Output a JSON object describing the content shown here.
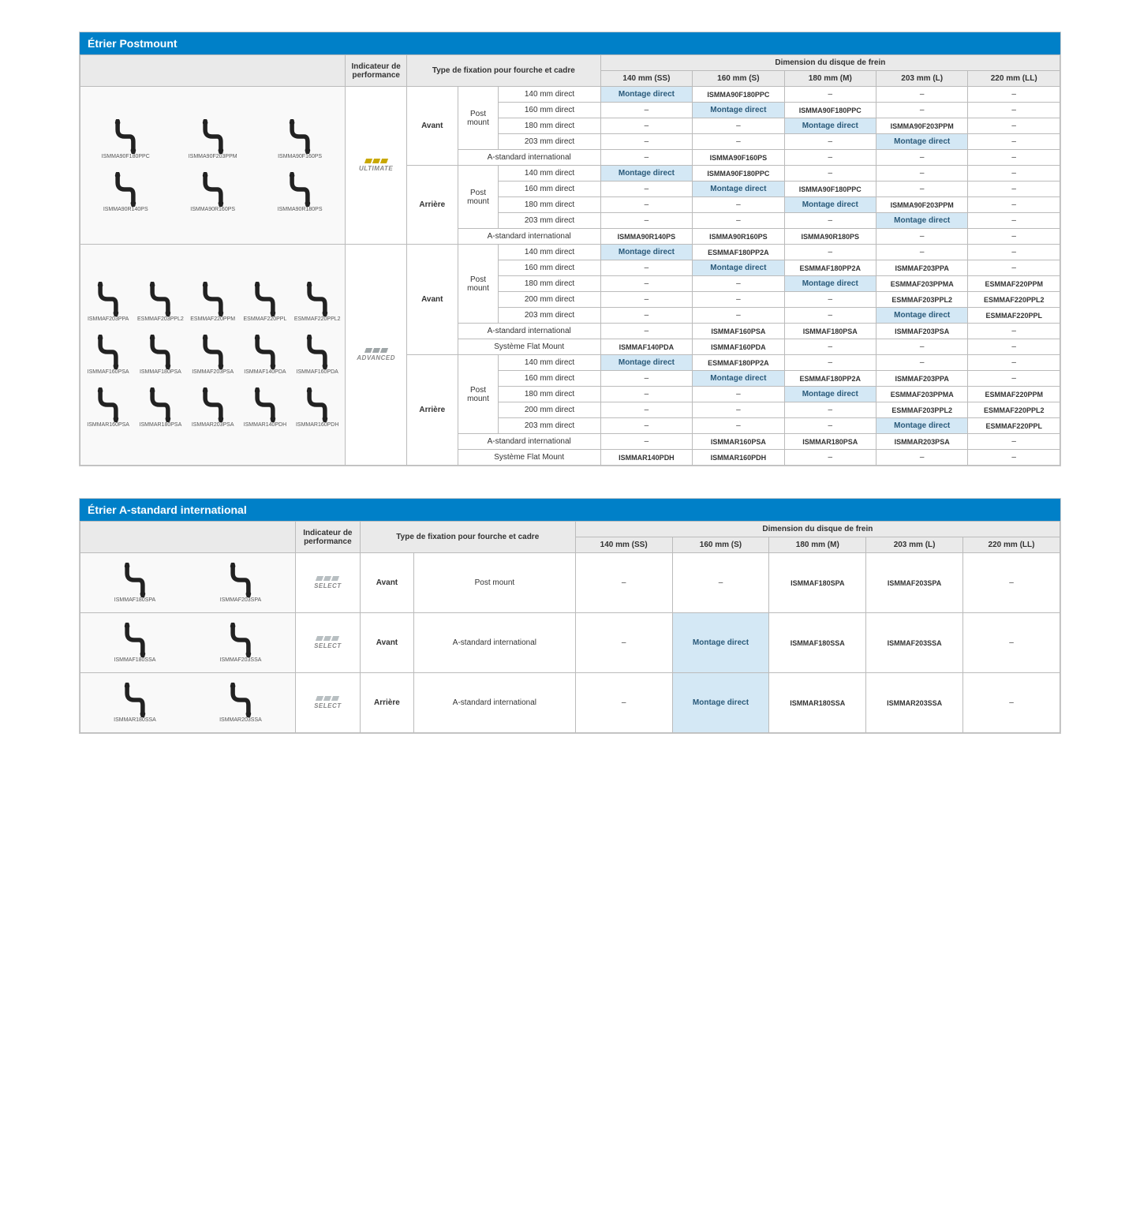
{
  "colors": {
    "header_bg": "#0080c8",
    "header_fg": "#ffffff",
    "th_bg": "#eaeaea",
    "border": "#bbbbbb",
    "highlight_bg": "#d4e8f5",
    "highlight_fg": "#2a5a7a",
    "body_bg": "#ffffff"
  },
  "headers": {
    "perf": "Indicateur de performance",
    "fixation": "Type de fixation pour fourche et cadre",
    "fixation_long": "Type de fixation pour fourche et cadre",
    "dimension": "Dimension du disque de frein",
    "dims": [
      "140 mm (SS)",
      "160 mm (S)",
      "180 mm (M)",
      "203 mm (L)",
      "220 mm (LL)"
    ]
  },
  "labels": {
    "avant": "Avant",
    "arriere": "Arrière",
    "postmount": "Post mount",
    "astd": "A-standard international",
    "flat": "Système Flat Mount",
    "md": "Montage direct",
    "na": "–",
    "ultimate": "ULTIMATE",
    "advanced": "ADVANCED",
    "select": "SELECT"
  },
  "section1": {
    "title": "Étrier Postmount",
    "group1_thumbs_top": [
      "ISMMA90F180PPC",
      "ISMMA90F203PPM",
      "ISMMA90F160PS"
    ],
    "group1_thumbs_bot": [
      "ISMMA90R140PS",
      "ISMMA90R160PS",
      "ISMMA90R180PS"
    ],
    "group2_thumbs_r1": [
      "ISMMAF203PPA",
      "ESMMAF203PPL2",
      "ESMMAF220PPM",
      "ESMMAF220PPL",
      "ESMMAF220PPL2"
    ],
    "group2_thumbs_r2": [
      "ISMMAF160PSA",
      "ISMMAF180PSA",
      "ISMMAF203PSA",
      "ISMMAF140PDA",
      "ISMMAF160PDA"
    ],
    "group2_thumbs_r3": [
      "ISMMAR160PSA",
      "ISMMAR180PSA",
      "ISMMAR203PSA",
      "ISMMAR140PDH",
      "ISMMAR160PDH"
    ],
    "g1": {
      "avant_pm": {
        "140": [
          "md",
          "ISMMA90F180PPC",
          "na",
          "na",
          "na"
        ],
        "160": [
          "na",
          "md",
          "ISMMA90F180PPC",
          "na",
          "na"
        ],
        "180": [
          "na",
          "na",
          "md",
          "ISMMA90F203PPM",
          "na"
        ],
        "203": [
          "na",
          "na",
          "na",
          "md",
          "na"
        ]
      },
      "avant_astd": [
        "na",
        "ISMMA90F160PS",
        "na",
        "na",
        "na"
      ],
      "arriere_pm": {
        "140": [
          "md",
          "ISMMA90F180PPC",
          "na",
          "na",
          "na"
        ],
        "160": [
          "na",
          "md",
          "ISMMA90F180PPC",
          "na",
          "na"
        ],
        "180": [
          "na",
          "na",
          "md",
          "ISMMA90F203PPM",
          "na"
        ],
        "203": [
          "na",
          "na",
          "na",
          "md",
          "na"
        ]
      },
      "arriere_astd": [
        "ISMMA90R140PS",
        "ISMMA90R160PS",
        "ISMMA90R180PS",
        "na",
        "na"
      ]
    },
    "g2": {
      "avant_pm": {
        "140": [
          "md",
          "ESMMAF180PP2A",
          "na",
          "na",
          "na"
        ],
        "160": [
          "na",
          "md",
          "ESMMAF180PP2A",
          "ISMMAF203PPA",
          "na"
        ],
        "180": [
          "na",
          "na",
          "md",
          "ESMMAF203PPMA",
          "ESMMAF220PPM"
        ],
        "200": [
          "na",
          "na",
          "na",
          "ESMMAF203PPL2",
          "ESMMAF220PPL2"
        ],
        "203": [
          "na",
          "na",
          "na",
          "md",
          "ESMMAF220PPL"
        ]
      },
      "avant_astd": [
        "na",
        "ISMMAF160PSA",
        "ISMMAF180PSA",
        "ISMMAF203PSA",
        "na"
      ],
      "avant_flat": [
        "ISMMAF140PDA",
        "ISMMAF160PDA",
        "na",
        "na",
        "na"
      ],
      "arriere_pm": {
        "140": [
          "md",
          "ESMMAF180PP2A",
          "na",
          "na",
          "na"
        ],
        "160": [
          "na",
          "md",
          "ESMMAF180PP2A",
          "ISMMAF203PPA",
          "na"
        ],
        "180": [
          "na",
          "na",
          "md",
          "ESMMAF203PPMA",
          "ESMMAF220PPM"
        ],
        "200": [
          "na",
          "na",
          "na",
          "ESMMAF203PPL2",
          "ESMMAF220PPL2"
        ],
        "203": [
          "na",
          "na",
          "na",
          "md",
          "ESMMAF220PPL"
        ]
      },
      "arriere_astd": [
        "na",
        "ISMMAR160PSA",
        "ISMMAR180PSA",
        "ISMMAR203PSA",
        "na"
      ],
      "arriere_flat": [
        "ISMMAR140PDH",
        "ISMMAR160PDH",
        "na",
        "na",
        "na"
      ]
    },
    "specs": {
      "140d": "140 mm direct",
      "160d": "160 mm direct",
      "180d": "180 mm direct",
      "200d": "200 mm direct",
      "203d": "203 mm direct"
    }
  },
  "section2": {
    "title": "Étrier A-standard international",
    "rows": [
      {
        "thumbs": [
          "ISMMAF180SPA",
          "ISMMAF203SPA"
        ],
        "pos": "Avant",
        "mount": "Post mount",
        "cells": [
          "na",
          "na",
          "ISMMAF180SPA",
          "ISMMAF203SPA",
          "na"
        ]
      },
      {
        "thumbs": [
          "ISMMAF180SSA",
          "ISMMAF203SSA"
        ],
        "pos": "Avant",
        "mount": "A-standard international",
        "cells": [
          "na",
          "md",
          "ISMMAF180SSA",
          "ISMMAF203SSA",
          "na"
        ]
      },
      {
        "thumbs": [
          "ISMMAR180SSA",
          "ISMMAR203SSA"
        ],
        "pos": "Arrière",
        "mount": "A-standard international",
        "cells": [
          "na",
          "md",
          "ISMMAR180SSA",
          "ISMMAR203SSA",
          "na"
        ]
      }
    ]
  }
}
